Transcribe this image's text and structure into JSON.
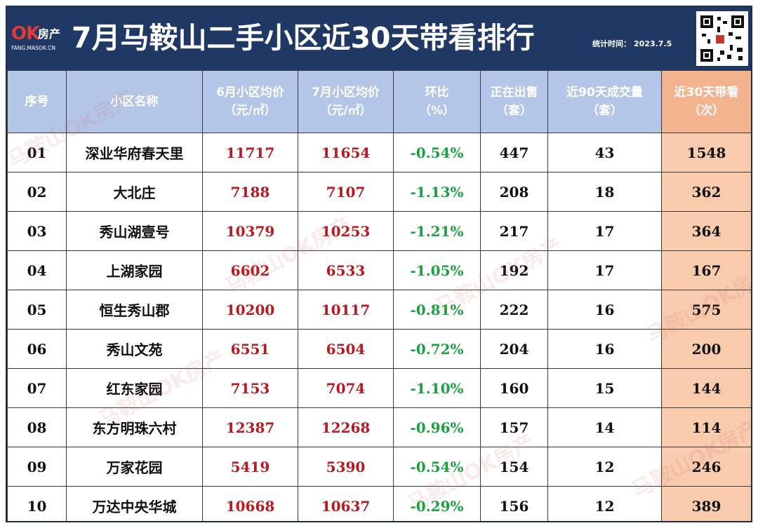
{
  "header": {
    "logo_ok": "OK",
    "logo_cn": "房产",
    "logo_url": "FANG.MASOK.CN",
    "title": "7月马鞍山二手小区近30天带看排行",
    "stat_label": "统计时间：",
    "stat_date": "2023.7.5"
  },
  "columns": [
    {
      "line1": "序号",
      "line2": ""
    },
    {
      "line1": "小区名称",
      "line2": ""
    },
    {
      "line1": "6月小区均价",
      "line2": "（元/㎡）"
    },
    {
      "line1": "7月小区均价",
      "line2": "（元/㎡）"
    },
    {
      "line1": "环比",
      "line2": "（%）"
    },
    {
      "line1": "正在出售",
      "line2": "（套）"
    },
    {
      "line1": "近90天成交量",
      "line2": "（套）"
    },
    {
      "line1": "近30天带看",
      "line2": "（次）"
    }
  ],
  "rows": [
    {
      "no": "01",
      "name": "深业华府春天里",
      "june": "11717",
      "july": "11654",
      "mom": "-0.54%",
      "on_sale": "447",
      "deals_90": "43",
      "views_30": "1548"
    },
    {
      "no": "02",
      "name": "大北庄",
      "june": "7188",
      "july": "7107",
      "mom": "-1.13%",
      "on_sale": "208",
      "deals_90": "18",
      "views_30": "362"
    },
    {
      "no": "03",
      "name": "秀山湖壹号",
      "june": "10379",
      "july": "10253",
      "mom": "-1.21%",
      "on_sale": "217",
      "deals_90": "17",
      "views_30": "364"
    },
    {
      "no": "04",
      "name": "上湖家园",
      "june": "6602",
      "july": "6533",
      "mom": "-1.05%",
      "on_sale": "192",
      "deals_90": "17",
      "views_30": "167"
    },
    {
      "no": "05",
      "name": "恒生秀山郡",
      "june": "10200",
      "july": "10117",
      "mom": "-0.81%",
      "on_sale": "222",
      "deals_90": "16",
      "views_30": "575"
    },
    {
      "no": "06",
      "name": "秀山文苑",
      "june": "6551",
      "july": "6504",
      "mom": "-0.72%",
      "on_sale": "204",
      "deals_90": "16",
      "views_30": "200"
    },
    {
      "no": "07",
      "name": "红东家园",
      "june": "7153",
      "july": "7074",
      "mom": "-1.10%",
      "on_sale": "160",
      "deals_90": "15",
      "views_30": "144"
    },
    {
      "no": "08",
      "name": "东方明珠六村",
      "june": "12387",
      "july": "12268",
      "mom": "-0.96%",
      "on_sale": "157",
      "deals_90": "14",
      "views_30": "114"
    },
    {
      "no": "09",
      "name": "万家花园",
      "june": "5419",
      "july": "5390",
      "mom": "-0.54%",
      "on_sale": "154",
      "deals_90": "12",
      "views_30": "246"
    },
    {
      "no": "10",
      "name": "万达中央华城",
      "june": "10668",
      "july": "10637",
      "mom": "-0.29%",
      "on_sale": "156",
      "deals_90": "12",
      "views_30": "389"
    }
  ],
  "watermark": "马鞍山OK房产",
  "colors": {
    "header_bg": "#1f3864",
    "column_header_bg": "#b4c6e7",
    "highlight_header_bg": "#f4b38f",
    "highlight_cell_bg": "#f8cbad",
    "price_text": "#b8181f",
    "change_text": "#19a23f"
  },
  "icons": {
    "qr": "qr-code-icon"
  }
}
